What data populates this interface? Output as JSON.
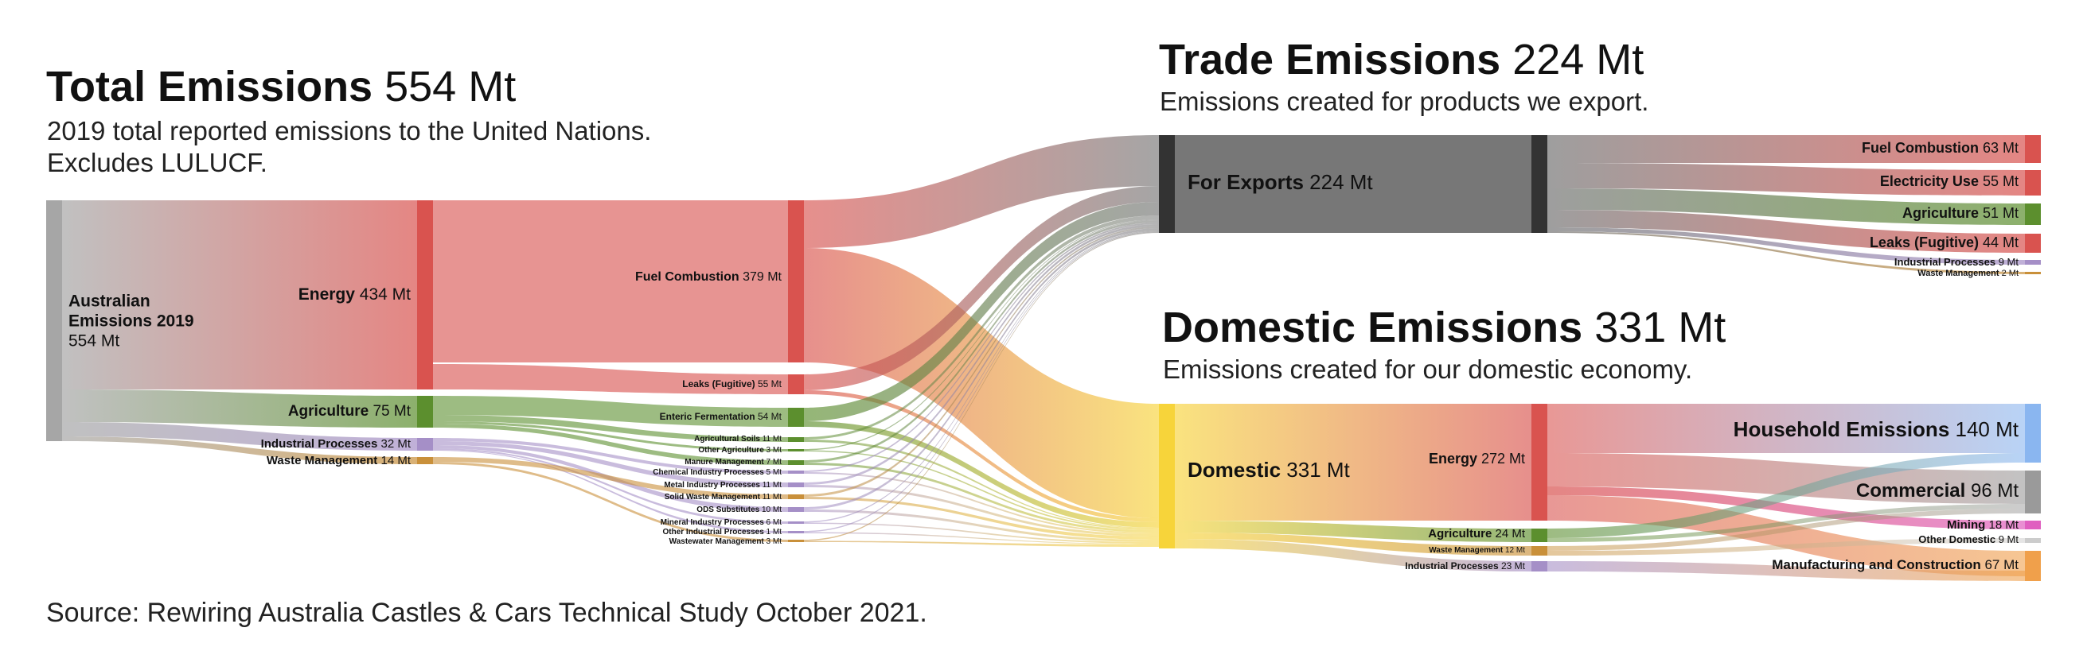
{
  "headings": {
    "total": {
      "title": "Total Emissions",
      "value": "554 Mt",
      "subtitle_1": "2019 total reported emissions to the United Nations.",
      "subtitle_2": "Excludes LULUCF."
    },
    "trade": {
      "title": "Trade Emissions",
      "value": "224 Mt",
      "subtitle": "Emissions created for products we export."
    },
    "domestic": {
      "title": "Domestic Emissions",
      "value": "331 Mt",
      "subtitle": "Emissions created for our domestic economy."
    }
  },
  "source_note": "Source: Rewiring Australia Castles & Cars Technical Study October 2021.",
  "colors": {
    "root": "#a6a6a6",
    "energy": "#d9534f",
    "agriculture": "#5c8f2e",
    "industrial": "#a58fc7",
    "waste": "#c9903a",
    "exports": "#757575",
    "domestic": "#f7d43a",
    "household": "#8ab6f0",
    "commercial": "#9a9a9a",
    "mining": "#e05fc0",
    "other_domestic": "#cccccc",
    "manufacturing": "#f0a04b"
  },
  "nodes": [
    {
      "id": "root",
      "label_1": "Australian",
      "label_2": "Emissions 2019",
      "value_text": "554 Mt",
      "color": "#a6a6a6"
    },
    {
      "id": "energy",
      "label": "Energy",
      "value_text": "434 Mt",
      "color": "#d9534f"
    },
    {
      "id": "agri",
      "label": "Agriculture",
      "value_text": "75 Mt",
      "color": "#5c8f2e"
    },
    {
      "id": "indproc",
      "label": "Industrial Processes",
      "value_text": "32 Mt",
      "color": "#a58fc7"
    },
    {
      "id": "waste",
      "label": "Waste Management",
      "value_text": "14 Mt",
      "color": "#c9903a"
    },
    {
      "id": "fuelcomb",
      "label": "Fuel Combustion",
      "value_text": "379 Mt",
      "color": "#d9534f"
    },
    {
      "id": "leaks",
      "label": "Leaks (Fugitive)",
      "value_text": "55 Mt",
      "color": "#d9534f"
    },
    {
      "id": "enteric",
      "label": "Enteric Fermentation",
      "value_text": "54 Mt",
      "color": "#5c8f2e"
    },
    {
      "id": "agsoils",
      "label": "Agricultural Soils",
      "value_text": "11 Mt",
      "color": "#5c8f2e"
    },
    {
      "id": "otherag",
      "label": "Other Agriculture",
      "value_text": "3 Mt",
      "color": "#5c8f2e"
    },
    {
      "id": "manure",
      "label": "Manure Management",
      "value_text": "7 Mt",
      "color": "#5c8f2e"
    },
    {
      "id": "chem",
      "label": "Chemical Industry Processes",
      "value_text": "5 Mt",
      "color": "#a58fc7"
    },
    {
      "id": "metal",
      "label": "Metal Industry Processes",
      "value_text": "11 Mt",
      "color": "#a58fc7"
    },
    {
      "id": "solidwaste",
      "label": "Solid Waste Management",
      "value_text": "11 Mt",
      "color": "#c9903a"
    },
    {
      "id": "ods",
      "label": "ODS Substitutes",
      "value_text": "10 Mt",
      "color": "#a58fc7"
    },
    {
      "id": "mineral",
      "label": "Mineral Industry Processes",
      "value_text": "6 Mt",
      "color": "#a58fc7"
    },
    {
      "id": "otherind",
      "label": "Other Industrial Processes",
      "value_text": "1 Mt",
      "color": "#a58fc7"
    },
    {
      "id": "wastewater",
      "label": "Wastewater Management",
      "value_text": "3 Mt",
      "color": "#c9903a"
    },
    {
      "id": "exports",
      "label": "For Exports",
      "value_text": "224 Mt",
      "color": "#757575"
    },
    {
      "id": "domestic",
      "label": "Domestic",
      "value_text": "331 Mt",
      "color": "#f7d43a"
    },
    {
      "id": "x_fuel",
      "label": "Fuel Combustion",
      "value_text": "63 Mt",
      "color": "#d9534f"
    },
    {
      "id": "x_elec",
      "label": "Electricity Use",
      "value_text": "55 Mt",
      "color": "#d9534f"
    },
    {
      "id": "x_agri",
      "label": "Agriculture",
      "value_text": "51 Mt",
      "color": "#5c8f2e"
    },
    {
      "id": "x_leaks",
      "label": "Leaks (Fugitive)",
      "value_text": "44 Mt",
      "color": "#d9534f"
    },
    {
      "id": "x_ind",
      "label": "Industrial Processes",
      "value_text": "9 Mt",
      "color": "#a58fc7"
    },
    {
      "id": "x_waste",
      "label": "Waste Management",
      "value_text": "2 Mt",
      "color": "#c9903a"
    },
    {
      "id": "d_energy",
      "label": "Energy",
      "value_text": "272 Mt",
      "color": "#d9534f"
    },
    {
      "id": "d_agri",
      "label": "Agriculture",
      "value_text": "24 Mt",
      "color": "#5c8f2e"
    },
    {
      "id": "d_waste",
      "label": "Waste Management",
      "value_text": "12 Mt",
      "color": "#c9903a"
    },
    {
      "id": "d_ind",
      "label": "Industrial Processes",
      "value_text": "23 Mt",
      "color": "#a58fc7"
    },
    {
      "id": "household",
      "label": "Household Emissions",
      "value_text": "140 Mt",
      "color": "#8ab6f0"
    },
    {
      "id": "commercial",
      "label": "Commercial",
      "value_text": "96 Mt",
      "color": "#9a9a9a"
    },
    {
      "id": "mining",
      "label": "Mining",
      "value_text": "18 Mt",
      "color": "#e05fc0"
    },
    {
      "id": "otherdom",
      "label": "Other Domestic",
      "value_text": "9 Mt",
      "color": "#cccccc"
    },
    {
      "id": "manufacturing",
      "label": "Manufacturing and Construction",
      "value_text": "67 Mt",
      "color": "#f0a04b"
    }
  ]
}
